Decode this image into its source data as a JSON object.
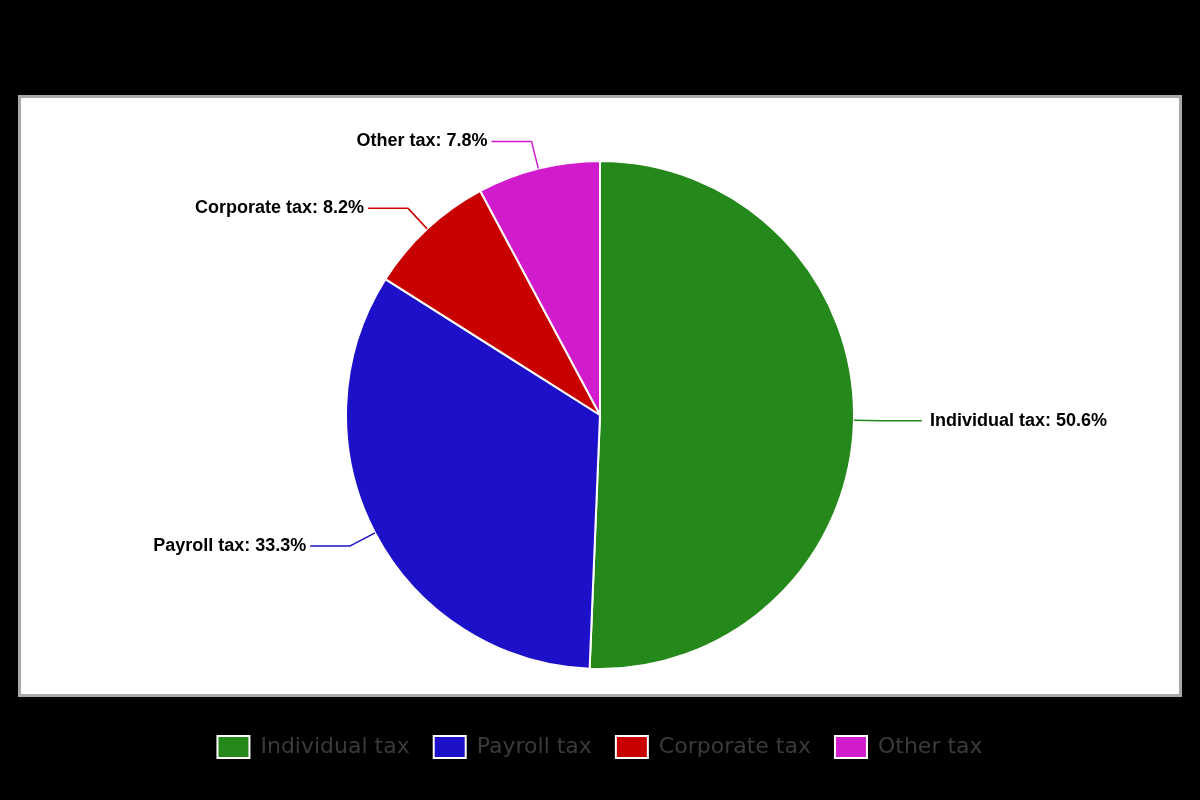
{
  "chart_data": {
    "type": "pie",
    "categories": [
      "Individual tax",
      "Payroll tax",
      "Corporate tax",
      "Other tax"
    ],
    "values": [
      50.6,
      33.3,
      8.2,
      7.8
    ],
    "colors": [
      "#24881a",
      "#1c10c8",
      "#c80000",
      "#d01ccc"
    ],
    "value_labels": [
      "Individual tax: 50.6%",
      "Payroll tax: 33.3%",
      "Corporate tax: 8.2%",
      "Other tax: 7.8%"
    ],
    "legend": "bottom"
  }
}
